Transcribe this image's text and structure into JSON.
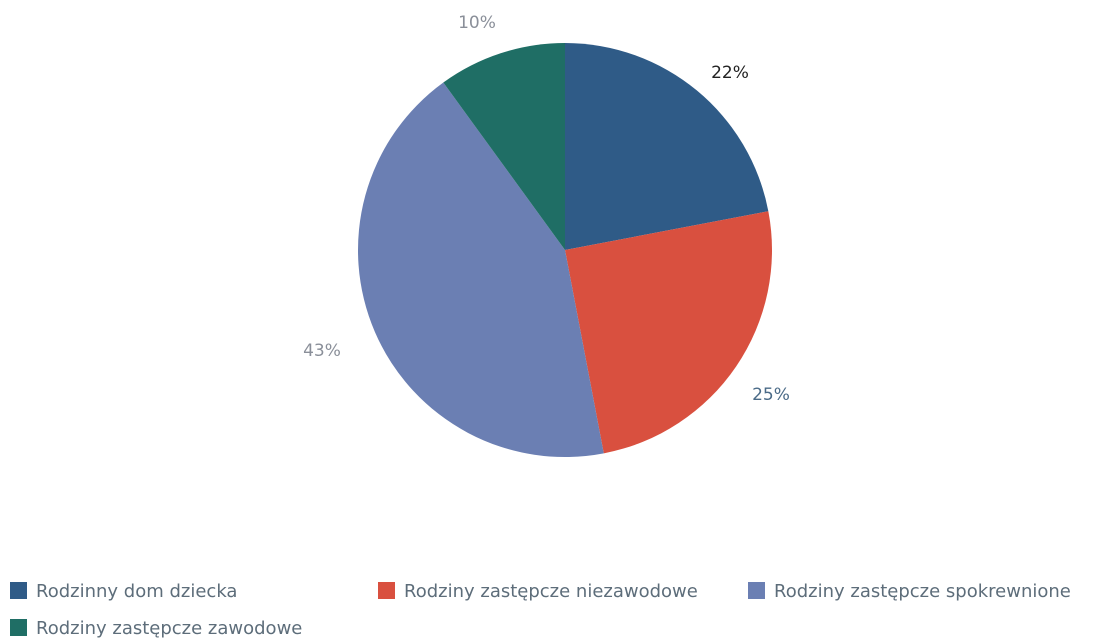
{
  "chart_data": {
    "type": "pie",
    "title": "",
    "start": "12 o'clock, clockwise",
    "slices": [
      {
        "label": "Rodzinny dom dziecka",
        "value": 22,
        "display": "22%",
        "color": "#2f5b87",
        "label_color": "#222222"
      },
      {
        "label": "Rodziny zastępcze niezawodowe",
        "value": 25,
        "display": "25%",
        "color": "#d9503f",
        "label_color": "#4a6a87"
      },
      {
        "label": "Rodziny zastępcze spokrewnione",
        "value": 43,
        "display": "43%",
        "color": "#6b7fb3",
        "label_color": "#8a8f99"
      },
      {
        "label": "Rodziny zastępcze zawodowe",
        "value": 10,
        "display": "10%",
        "color": "#1f6e65",
        "label_color": "#8a8f99"
      }
    ],
    "legend": {
      "placement": "bottom",
      "entries": [
        "Rodzinny dom dziecka",
        "Rodziny zastępcze niezawodowe",
        "Rodziny zastępcze spokrewnione",
        "Rodziny zastępcze zawodowe"
      ]
    }
  }
}
